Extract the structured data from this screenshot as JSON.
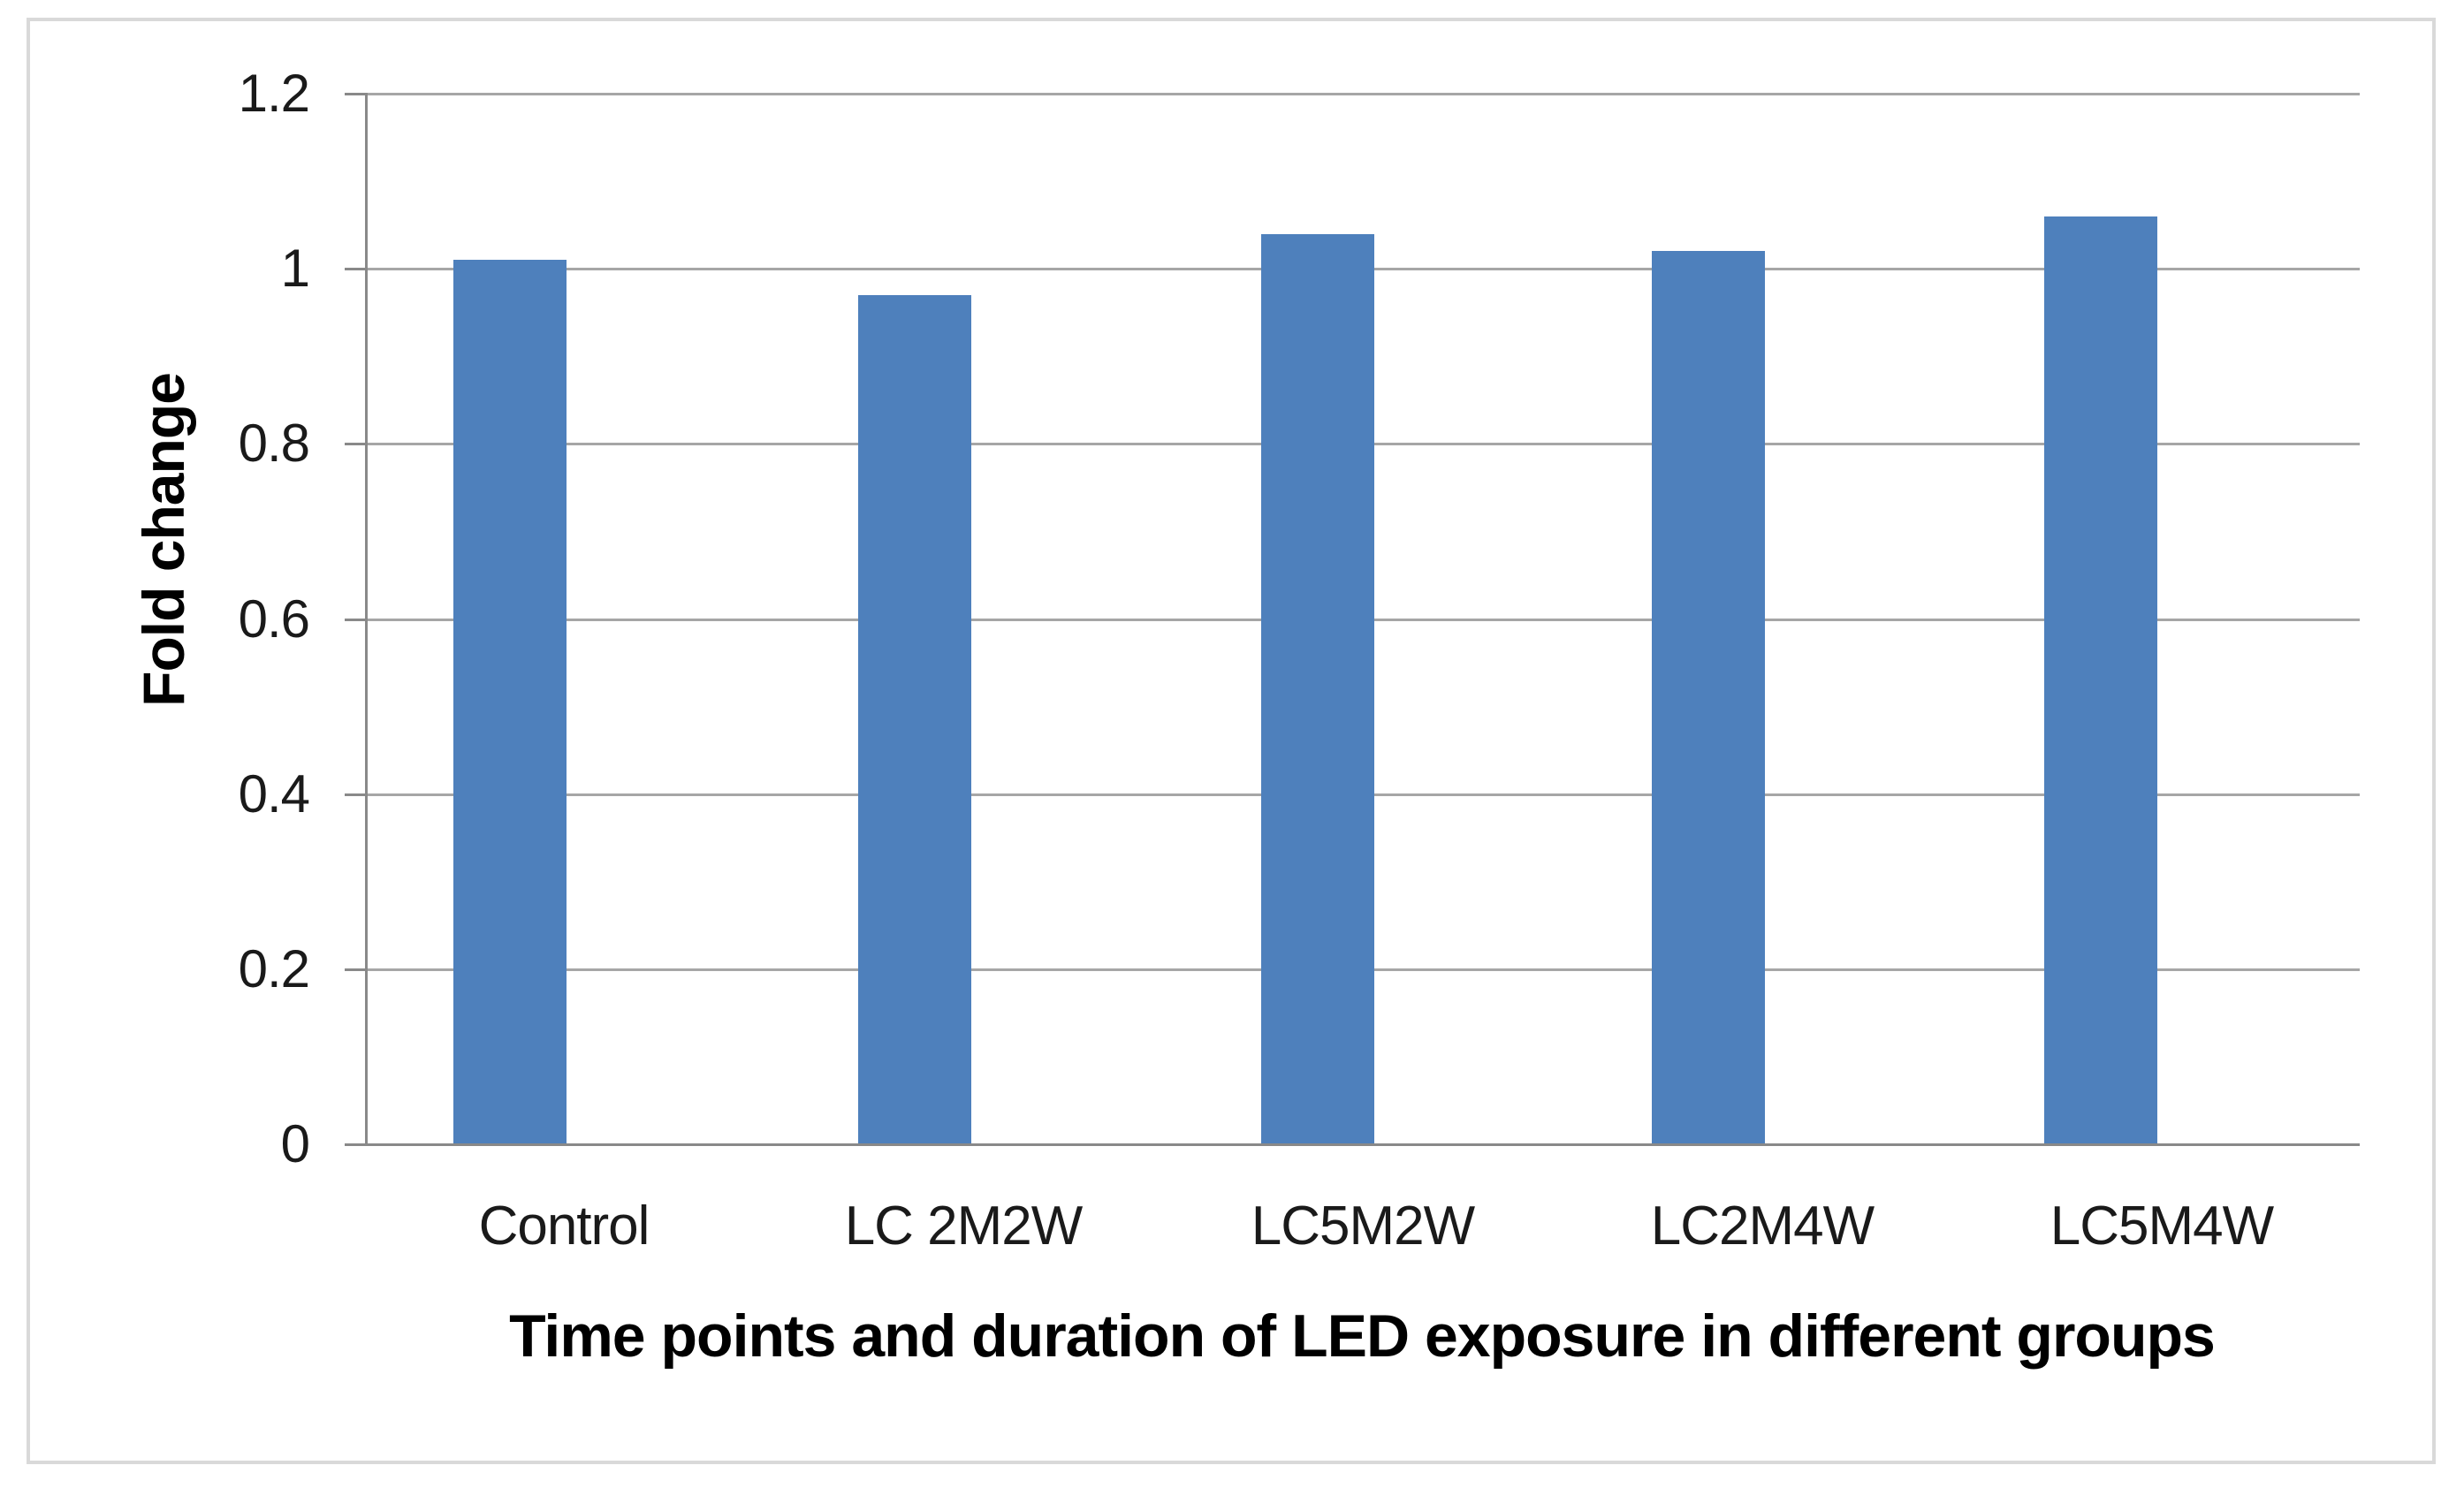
{
  "chart_data": {
    "type": "bar",
    "categories": [
      "Control",
      "LC 2M2W",
      "LC5M2W",
      "LC2M4W",
      "LC5M4W"
    ],
    "values": [
      1.01,
      0.97,
      1.04,
      1.02,
      1.06
    ],
    "title": "",
    "xlabel": "Time points and duration of LED exposure in different groups",
    "ylabel": "Fold change",
    "ylim": [
      0,
      1.2
    ],
    "yticks": [
      0,
      0.2,
      0.4,
      0.6,
      0.8,
      1,
      1.2
    ],
    "ytick_labels": [
      "0",
      "0.2",
      "0.4",
      "0.6",
      "0.8",
      "1",
      "1.2"
    ],
    "grid": "horizontal",
    "legend": "none",
    "bar_color": "#4E80BC",
    "gridline_color": "#A6A6A6",
    "axis_color": "#898989",
    "text_color": "#1a1a1a",
    "figure_border_color": "#D9D9D9",
    "background_color": "#ffffff"
  }
}
